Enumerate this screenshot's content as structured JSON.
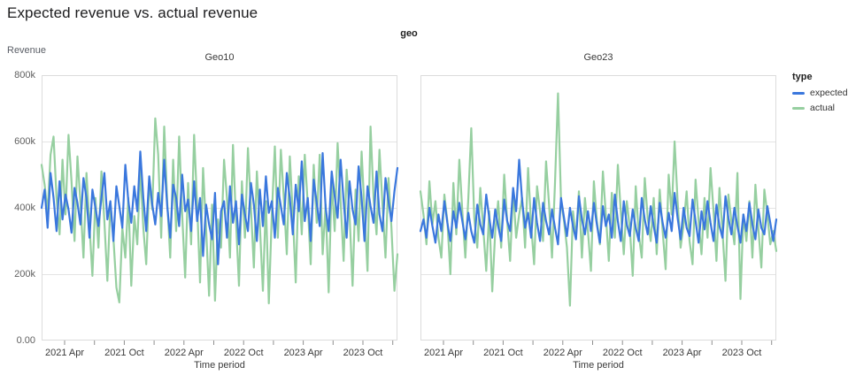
{
  "page": {
    "title": "Expected revenue vs. actual revenue"
  },
  "colors": {
    "expected": "#3a77dd",
    "actual": "#96cfa0",
    "gridline": "#e4e4e4",
    "plot_border": "#dcdcdc",
    "tick_mark": "#8f8f8f",
    "axis_text": "#3a3a3a"
  },
  "legend": {
    "title": "type",
    "items": [
      {
        "label": "expected",
        "color": "#3a77dd"
      },
      {
        "label": "actual",
        "color": "#96cfa0"
      }
    ]
  },
  "chart_data": {
    "type": "line",
    "title": "Expected revenue vs. actual revenue",
    "facet_header": "geo",
    "unit": "thousands (k) of revenue, weekly points from early 2021 to late 2023",
    "x_axis": {
      "label": "Time period",
      "tick_labels": [
        "2021 Apr",
        "2021 Oct",
        "2022 Apr",
        "2022 Oct",
        "2023 Apr",
        "2023 Oct"
      ],
      "minor_ticks": "unlabeled quarterly ticks between labels (Jul/Jan), ending Jan 2024",
      "grid": false
    },
    "y_axis": {
      "label": "Revenue",
      "tick_labels": [
        "0.00",
        "200k",
        "400k",
        "600k",
        "800k"
      ],
      "ticks_k": [
        0,
        200,
        400,
        600,
        800
      ],
      "max_k": 800,
      "grid": true
    },
    "legend_position": "right",
    "facets": [
      {
        "name": "Geo10",
        "series": [
          {
            "name": "actual",
            "color": "#96cfa0",
            "values_k": [
              530,
              470,
              385,
              560,
              615,
              430,
              320,
              545,
              380,
              620,
              480,
              300,
              555,
              415,
              250,
              505,
              345,
              195,
              430,
              280,
              510,
              360,
              180,
              415,
              310,
              160,
              115,
              340,
              250,
              430,
              165,
              375,
              290,
              520,
              340,
              230,
              480,
              395,
              670,
              560,
              310,
              645,
              420,
              250,
              545,
              330,
              615,
              380,
              190,
              475,
              290,
              620,
              410,
              175,
              520,
              340,
              135,
              410,
              120,
              365,
              280,
              545,
              430,
              250,
              590,
              360,
              165,
              480,
              310,
              580,
              400,
              220,
              510,
              345,
              150,
              420,
              112,
              380,
              585,
              310,
              575,
              430,
              260,
              555,
              380,
              175,
              495,
              320,
              560,
              410,
              230,
              530,
              355,
              560,
              260,
              410,
              145,
              480,
              330,
              595,
              420,
              240,
              515,
              380,
              165,
              455,
              300,
              570,
              390,
              210,
              645,
              430,
              320,
              575,
              410,
              250,
              490,
              340,
              150,
              260
            ]
          },
          {
            "name": "expected",
            "color": "#3a77dd",
            "values_k": [
              400,
              455,
              340,
              505,
              430,
              330,
              480,
              365,
              440,
              395,
              325,
              460,
              415,
              350,
              490,
              430,
              310,
              455,
              400,
              345,
              430,
              505,
              365,
              420,
              300,
              465,
              405,
              340,
              530,
              420,
              355,
              465,
              390,
              570,
              430,
              330,
              495,
              410,
              350,
              445,
              375,
              545,
              405,
              310,
              470,
              430,
              345,
              500,
              390,
              425,
              330,
              480,
              360,
              430,
              255,
              410,
              350,
              305,
              445,
              230,
              390,
              420,
              310,
              465,
              355,
              420,
              290,
              440,
              380,
              330,
              475,
              410,
              300,
              455,
              345,
              495,
              385,
              420,
              310,
              460,
              405,
              350,
              505,
              430,
              320,
              470,
              390,
              540,
              360,
              430,
              300,
              485,
              415,
              345,
              565,
              400,
              330,
              510,
              435,
              370,
              545,
              420,
              310,
              480,
              395,
              350,
              525,
              430,
              300,
              465,
              405,
              355,
              510,
              380,
              330,
              490,
              420,
              360,
              450,
              520
            ]
          }
        ]
      },
      {
        "name": "Geo23",
        "series": [
          {
            "name": "actual",
            "color": "#96cfa0",
            "values_k": [
              450,
              380,
              290,
              480,
              350,
              420,
              310,
              250,
              440,
              360,
              200,
              475,
              320,
              545,
              390,
              250,
              430,
              640,
              370,
              280,
              460,
              340,
              210,
              390,
              148,
              330,
              420,
              280,
              500,
              360,
              240,
              455,
              310,
              380,
              430,
              280,
              520,
              350,
              230,
              465,
              390,
              300,
              540,
              410,
              250,
              475,
              745,
              420,
              360,
              280,
              105,
              390,
              310,
              450,
              250,
              430,
              330,
              210,
              480,
              360,
              290,
              510,
              380,
              240,
              445,
              310,
              530,
              390,
              260,
              420,
              340,
              195,
              465,
              320,
              250,
              490,
              370,
              300,
              430,
              260,
              455,
              330,
              215,
              500,
              380,
              600,
              420,
              280,
              350,
              450,
              300,
              230,
              485,
              360,
              260,
              430,
              310,
              520,
              390,
              240,
              460,
              330,
              180,
              440,
              360,
              290,
              505,
              125,
              380,
              300,
              420,
              250,
              470,
              340,
              220,
              455,
              380,
              290,
              330,
              270
            ]
          },
          {
            "name": "expected",
            "color": "#3a77dd",
            "values_k": [
              330,
              365,
              310,
              400,
              345,
              295,
              380,
              330,
              420,
              355,
              300,
              390,
              340,
              415,
              360,
              305,
              385,
              330,
              295,
              410,
              350,
              320,
              440,
              370,
              310,
              395,
              345,
              300,
              425,
              360,
              330,
              460,
              390,
              545,
              420,
              340,
              385,
              310,
              430,
              355,
              300,
              415,
              360,
              320,
              395,
              340,
              290,
              430,
              370,
              315,
              400,
              345,
              305,
              435,
              365,
              320,
              390,
              330,
              415,
              350,
              295,
              405,
              345,
              380,
              310,
              440,
              360,
              300,
              420,
              350,
              315,
              395,
              340,
              300,
              430,
              365,
              320,
              405,
              345,
              295,
              415,
              355,
              310,
              385,
              330,
              445,
              370,
              305,
              400,
              340,
              315,
              425,
              360,
              295,
              390,
              335,
              420,
              355,
              300,
              410,
              345,
              310,
              435,
              370,
              320,
              400,
              345,
              295,
              380,
              330,
              415,
              350,
              305,
              395,
              340,
              320,
              405,
              355,
              300,
              365
            ]
          }
        ]
      }
    ]
  }
}
